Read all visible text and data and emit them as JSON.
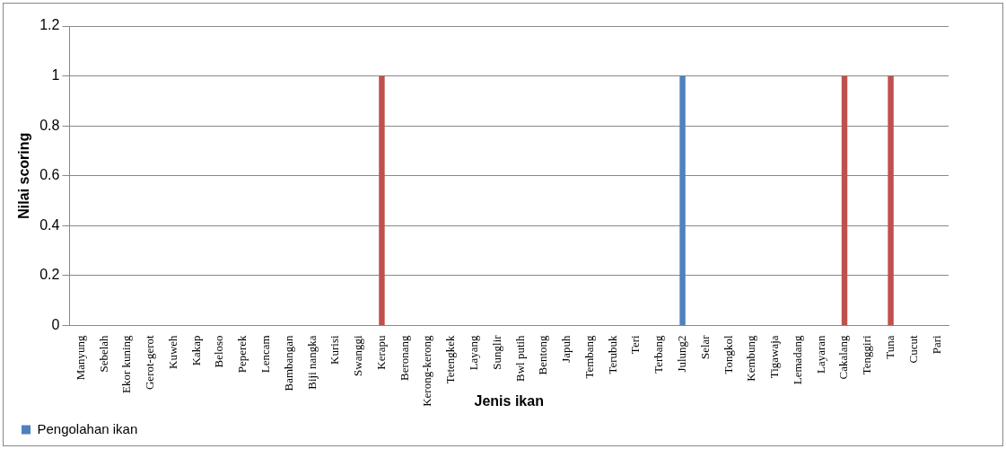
{
  "chart_data": {
    "type": "bar",
    "xlabel": "Jenis ikan",
    "ylabel": "Nilai scoring",
    "categories": [
      "Manyung",
      "Sebelah",
      "Ekor kuning",
      "Gerot-gerot",
      "Kuweh",
      "Kakap",
      "Beloso",
      "Peperek",
      "Lencam",
      "Bambangan",
      "Biji nangka",
      "Kurisi",
      "Swanggi",
      "Kerapu",
      "Beronang",
      "Kerong-kerong",
      "Tetengkek",
      "Layang",
      "Sunglir",
      "Bwl putih",
      "Bentong",
      "Japuh",
      "Tembang",
      "Terubuk",
      "Teri",
      "Terbang",
      "Julung2",
      "Selar",
      "Tongkol",
      "Kembung",
      "Tigawaja",
      "Lemadang",
      "Layaran",
      "Cakalang",
      "Tenggiri",
      "Tuna",
      "Cucut",
      "Pari"
    ],
    "series": [
      {
        "name": "Pengolahan ikan",
        "color": "#4f81bd",
        "values": [
          0,
          0,
          0,
          0,
          0,
          0,
          0,
          0,
          0,
          0,
          0,
          0,
          0,
          1,
          0,
          0,
          0,
          0,
          0,
          0,
          0,
          0,
          0,
          0,
          0,
          0,
          1,
          0,
          0,
          0,
          0,
          0,
          0,
          1,
          0,
          1,
          0,
          0
        ],
        "colors": [
          "#4f81bd",
          "#4f81bd",
          "#4f81bd",
          "#4f81bd",
          "#4f81bd",
          "#4f81bd",
          "#4f81bd",
          "#4f81bd",
          "#4f81bd",
          "#4f81bd",
          "#4f81bd",
          "#4f81bd",
          "#4f81bd",
          "#c0504d",
          "#4f81bd",
          "#4f81bd",
          "#4f81bd",
          "#4f81bd",
          "#4f81bd",
          "#4f81bd",
          "#4f81bd",
          "#4f81bd",
          "#4f81bd",
          "#4f81bd",
          "#4f81bd",
          "#4f81bd",
          "#4f81bd",
          "#4f81bd",
          "#4f81bd",
          "#4f81bd",
          "#4f81bd",
          "#4f81bd",
          "#4f81bd",
          "#c0504d",
          "#4f81bd",
          "#c0504d",
          "#4f81bd",
          "#4f81bd"
        ]
      }
    ],
    "ylim": [
      0,
      1.2
    ],
    "yticks": [
      0,
      0.2,
      0.4,
      0.6,
      0.8,
      1,
      1.2
    ],
    "grid": "y",
    "legend": "bottom left"
  }
}
